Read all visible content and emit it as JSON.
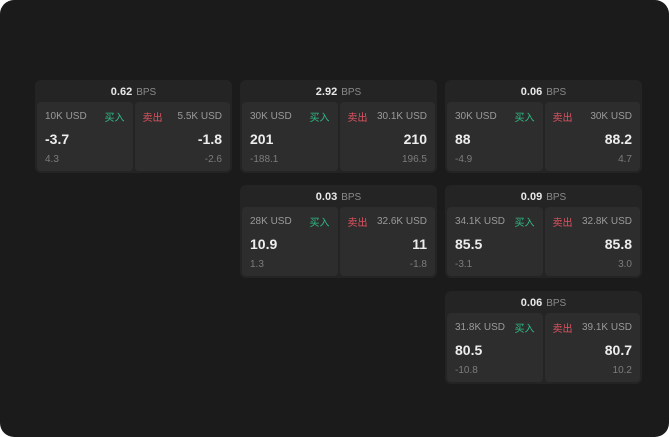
{
  "labels": {
    "buy": "买入",
    "sell": "卖出",
    "bps_unit": "BPS"
  },
  "cards": [
    {
      "bps": "0.62",
      "buy": {
        "size": "10K USD",
        "price": "-3.7",
        "sub": "4.3"
      },
      "sell": {
        "size": "5.5K USD",
        "price": "-1.8",
        "sub": "-2.6"
      }
    },
    {
      "bps": "2.92",
      "buy": {
        "size": "30K USD",
        "price": "201",
        "sub": "-188.1"
      },
      "sell": {
        "size": "30.1K USD",
        "price": "210",
        "sub": "196.5"
      }
    },
    {
      "bps": "0.06",
      "buy": {
        "size": "30K USD",
        "price": "88",
        "sub": "-4.9"
      },
      "sell": {
        "size": "30K USD",
        "price": "88.2",
        "sub": "4.7"
      }
    },
    {
      "bps": "0.03",
      "buy": {
        "size": "28K USD",
        "price": "10.9",
        "sub": "1.3"
      },
      "sell": {
        "size": "32.6K USD",
        "price": "11",
        "sub": "-1.8"
      }
    },
    {
      "bps": "0.09",
      "buy": {
        "size": "34.1K USD",
        "price": "85.5",
        "sub": "-3.1"
      },
      "sell": {
        "size": "32.8K USD",
        "price": "85.8",
        "sub": "3.0"
      }
    },
    {
      "bps": "0.06",
      "buy": {
        "size": "31.8K USD",
        "price": "80.5",
        "sub": "-10.8"
      },
      "sell": {
        "size": "39.1K USD",
        "price": "80.7",
        "sub": "10.2"
      }
    }
  ]
}
